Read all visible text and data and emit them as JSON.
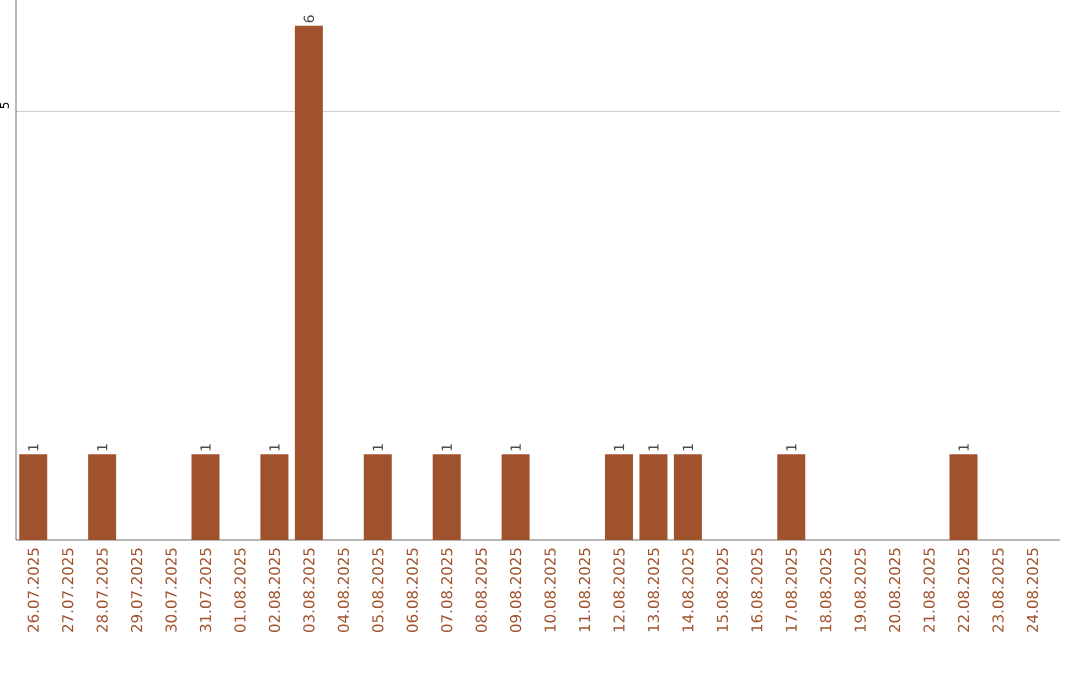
{
  "chart_data": {
    "type": "bar",
    "categories": [
      "26.07.2025",
      "27.07.2025",
      "28.07.2025",
      "29.07.2025",
      "30.07.2025",
      "31.07.2025",
      "01.08.2025",
      "02.08.2025",
      "03.08.2025",
      "04.08.2025",
      "05.08.2025",
      "06.08.2025",
      "07.08.2025",
      "08.08.2025",
      "09.08.2025",
      "10.08.2025",
      "11.08.2025",
      "12.08.2025",
      "13.08.2025",
      "14.08.2025",
      "15.08.2025",
      "16.08.2025",
      "17.08.2025",
      "18.08.2025",
      "19.08.2025",
      "20.08.2025",
      "21.08.2025",
      "22.08.2025",
      "23.08.2025",
      "24.08.2025"
    ],
    "values": [
      1,
      0,
      1,
      0,
      0,
      1,
      0,
      1,
      6,
      0,
      1,
      0,
      1,
      0,
      1,
      0,
      0,
      1,
      1,
      1,
      0,
      0,
      1,
      0,
      0,
      0,
      0,
      1,
      0,
      0
    ],
    "value_labels": [
      "1",
      null,
      "1",
      null,
      null,
      "1",
      null,
      "1",
      "6",
      null,
      "1",
      null,
      "1",
      null,
      "1",
      null,
      null,
      "1",
      "1",
      "1",
      null,
      null,
      "1",
      null,
      null,
      null,
      null,
      "1",
      null,
      null
    ],
    "color": "#a0522d",
    "ylim": [
      0,
      6.3
    ],
    "yticks": [
      5
    ],
    "grid": "y"
  }
}
